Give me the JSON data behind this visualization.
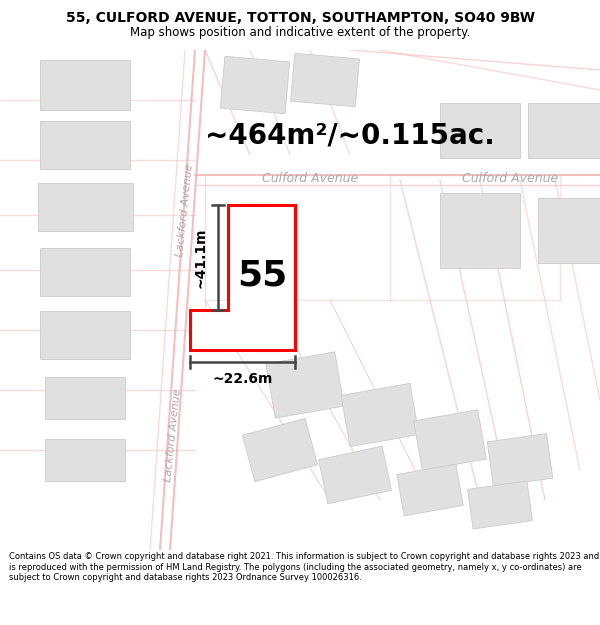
{
  "title_line1": "55, CULFORD AVENUE, TOTTON, SOUTHAMPTON, SO40 9BW",
  "title_line2": "Map shows position and indicative extent of the property.",
  "footer_text": "Contains OS data © Crown copyright and database right 2021. This information is subject to Crown copyright and database rights 2023 and is reproduced with the permission of HM Land Registry. The polygons (including the associated geometry, namely x, y co-ordinates) are subject to Crown copyright and database rights 2023 Ordnance Survey 100026316.",
  "area_label": "~464m²/~0.115ac.",
  "street_label1": "Culford Avenue",
  "street_label2": "Culford Avenue",
  "street_label_left": "Lackford Avenue",
  "street_label_left2": "Lackford Avenue",
  "property_number": "55",
  "dim_width_label": "~22.6m",
  "dim_height_label": "~41.1m",
  "map_bg": "#f8f8f8",
  "road_color": "#f2b8b8",
  "building_fill": "#e0e0e0",
  "building_edge": "#cccccc",
  "highlight_color": "#ff0000",
  "dim_color": "#444444",
  "street_color": "#aaaaaa",
  "title_fontsize": 10,
  "subtitle_fontsize": 8.5,
  "area_fontsize": 20,
  "prop_num_fontsize": 26,
  "footer_fontsize": 6.0
}
